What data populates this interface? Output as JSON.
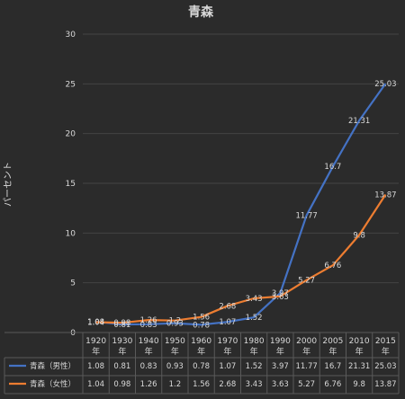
{
  "chart_data": {
    "type": "line",
    "title": "青森",
    "ylabel": "パーセント",
    "xlabel": "",
    "categories": [
      "1920 年",
      "1930 年",
      "1940 年",
      "1950 年",
      "1960 年",
      "1970 年",
      "1980 年",
      "1990 年",
      "2000 年",
      "2005 年",
      "2010 年",
      "2015 年"
    ],
    "ylim": [
      0,
      30
    ],
    "yticks": [
      0,
      5,
      10,
      15,
      20,
      25,
      30
    ],
    "grid": true,
    "legend": "data-table",
    "series": [
      {
        "name": "青森（男性）",
        "color": "#4472c4",
        "values": [
          1.08,
          0.81,
          0.83,
          0.93,
          0.78,
          1.07,
          1.52,
          3.97,
          11.77,
          16.7,
          21.31,
          25.03
        ],
        "labels": [
          "1.08",
          "0.81",
          "0.83",
          "0.93",
          "0.78",
          "1.07",
          "1.52",
          "3.97",
          "11.77",
          "16.7",
          "21.31",
          "25.03"
        ]
      },
      {
        "name": "青森（女性）",
        "color": "#ed7d31",
        "values": [
          1.04,
          0.98,
          1.26,
          1.2,
          1.56,
          2.68,
          3.43,
          3.63,
          5.27,
          6.76,
          9.8,
          13.87
        ],
        "labels": [
          "1.04",
          "0.98",
          "1.26",
          "1.2",
          "1.56",
          "2.68",
          "3.43",
          "3.63",
          "5.27",
          "6.76",
          "9.8",
          "13.87"
        ]
      }
    ]
  }
}
